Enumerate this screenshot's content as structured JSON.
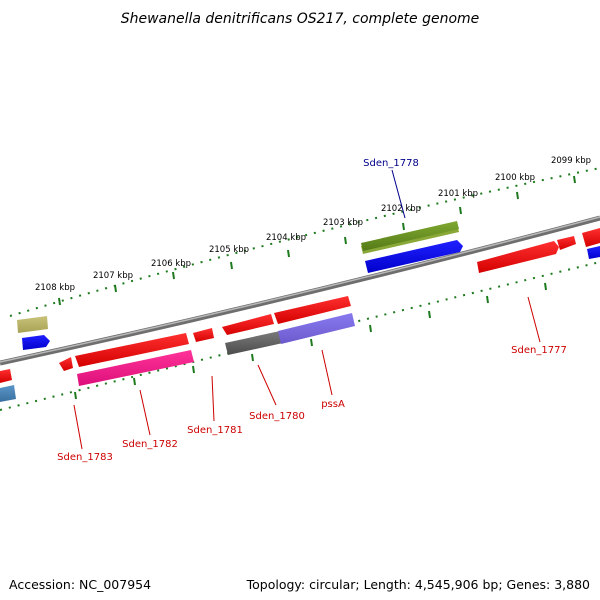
{
  "title": "Shewanella denitrificans OS217, complete genome",
  "footer": {
    "accession": "Accession: NC_007954",
    "summary": "Topology: circular; Length: 4,545,906 bp; Genes: 3,880"
  },
  "kbp_labels": [
    "2099 kbp",
    "2100 kbp",
    "2101 kbp",
    "2102 kbp",
    "2103 kbp",
    "2104 kbp",
    "2105 kbp",
    "2106 kbp",
    "2107 kbp",
    "2108 kbp"
  ],
  "gene_labels": [
    {
      "text": "Sden_1778",
      "color": "#00008b"
    },
    {
      "text": "Sden_1777",
      "color": "#cc0000"
    },
    {
      "text": "pssA",
      "color": "#cc0000"
    },
    {
      "text": "Sden_1780",
      "color": "#cc0000"
    },
    {
      "text": "Sden_1781",
      "color": "#cc0000"
    },
    {
      "text": "Sden_1782",
      "color": "#cc0000"
    },
    {
      "text": "Sden_1783",
      "color": "#cc0000"
    }
  ],
  "colors": {
    "backbone": "#8c8c8c",
    "tick": "#1e7a1e",
    "gene_red": "#ee1111",
    "gene_blue": "#0000ee",
    "gene_olive": "#6b8e23",
    "gene_magenta": "#ee1188",
    "gene_gray": "#666666",
    "gene_purple": "#7b68ee",
    "gene_khaki": "#bdb76b",
    "gene_steel": "#4682b4"
  }
}
